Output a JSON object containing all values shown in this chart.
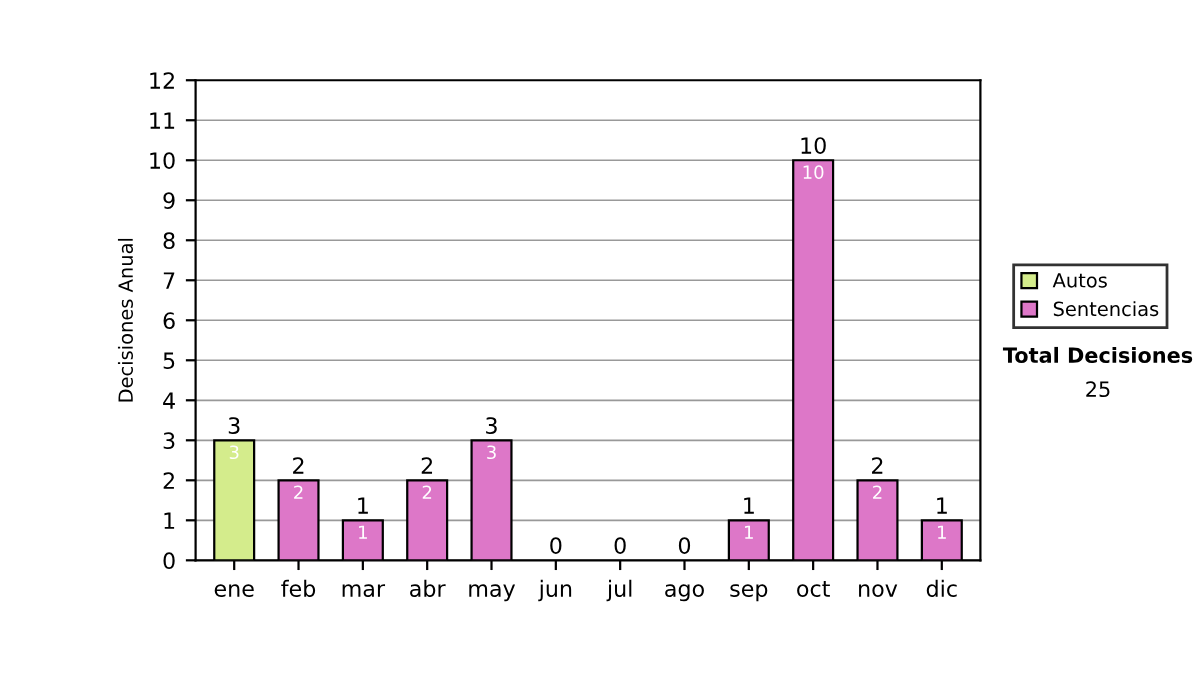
{
  "chart_data": {
    "type": "bar",
    "stacked": true,
    "ylabel": "Decisiones Anual",
    "categories": [
      "ene",
      "feb",
      "mar",
      "abr",
      "may",
      "jun",
      "jul",
      "ago",
      "sep",
      "oct",
      "nov",
      "dic"
    ],
    "series": [
      {
        "name": "Sentencias",
        "color": "#dd77c8",
        "values": [
          0,
          2,
          1,
          2,
          3,
          0,
          0,
          0,
          1,
          10,
          2,
          1
        ],
        "value_labels": [
          null,
          "2",
          "1",
          "2",
          "3",
          null,
          null,
          null,
          "1",
          "10",
          "2",
          "1"
        ]
      },
      {
        "name": "Autos",
        "color": "#d4ec8c",
        "values": [
          3,
          0,
          0,
          0,
          0,
          0,
          0,
          0,
          0,
          0,
          0,
          0
        ],
        "value_labels": [
          "3",
          null,
          null,
          null,
          null,
          null,
          null,
          null,
          null,
          null,
          null,
          null
        ]
      }
    ],
    "totals": [
      "3",
      "2",
      "1",
      "2",
      "3",
      "0",
      "0",
      "0",
      "1",
      "10",
      "2",
      "1"
    ],
    "ylim": [
      0,
      12
    ],
    "yticks": [
      0,
      1,
      2,
      3,
      4,
      5,
      6,
      7,
      8,
      9,
      10,
      11,
      12
    ],
    "grid": "y",
    "legend": "right",
    "annotations": [
      "Total Decisiones",
      "25"
    ]
  }
}
